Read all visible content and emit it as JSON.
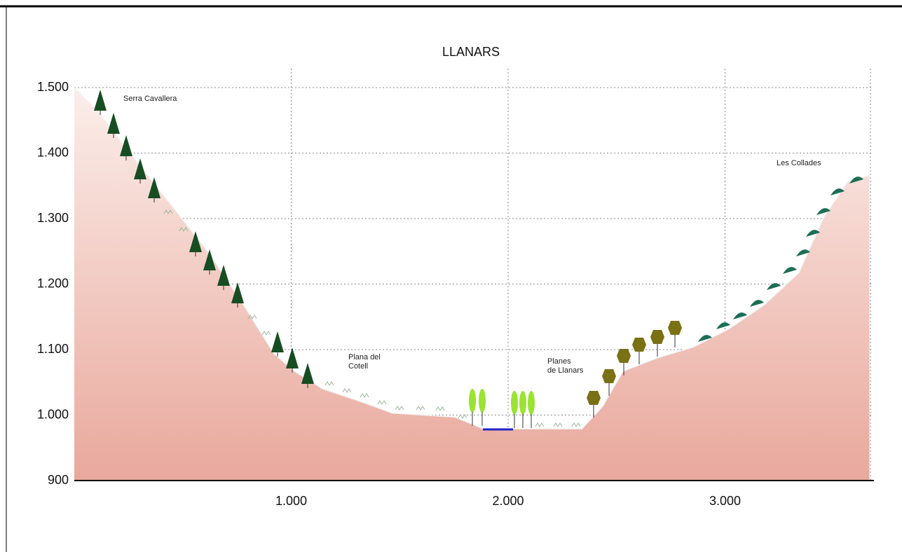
{
  "chart_data": {
    "type": "area",
    "title": "LLANARS",
    "x": [
      0,
      110,
      300,
      465,
      630,
      790,
      920,
      1015,
      1145,
      1335,
      1465,
      1755,
      1885,
      2015,
      2340,
      2435,
      2530,
      2695,
      2855,
      3015,
      3180,
      3340,
      3455,
      3565,
      3665
    ],
    "values": [
      1500,
      1463,
      1382,
      1313,
      1243,
      1163,
      1094,
      1067,
      1040,
      1019,
      1003,
      997,
      979,
      979,
      979,
      1013,
      1067,
      1088,
      1104,
      1131,
      1168,
      1217,
      1302,
      1356,
      1366
    ],
    "color": "#e9a89c",
    "xlim": [
      0,
      3680
    ],
    "ylim": [
      900,
      1500
    ],
    "xticks": [
      {
        "value": 1000,
        "label": "1.000"
      },
      {
        "value": 2000,
        "label": "2.000"
      },
      {
        "value": 3000,
        "label": "3.000"
      }
    ],
    "yticks": [
      900,
      {
        "value": 1000,
        "label": "1.000"
      },
      {
        "value": 1100,
        "label": "1.100"
      },
      {
        "value": 1200,
        "label": "1.200"
      },
      {
        "value": 1300,
        "label": "1.300"
      },
      {
        "value": 1400,
        "label": "1.400"
      },
      {
        "value": 1500,
        "label": "1.500"
      }
    ],
    "grid": true,
    "annotations": [
      [
        "Serra Cavallera"
      ],
      [
        "Plana del",
        "Cotell"
      ],
      [
        "Planes",
        "de Llanars"
      ],
      [
        "Les Collades"
      ]
    ]
  }
}
